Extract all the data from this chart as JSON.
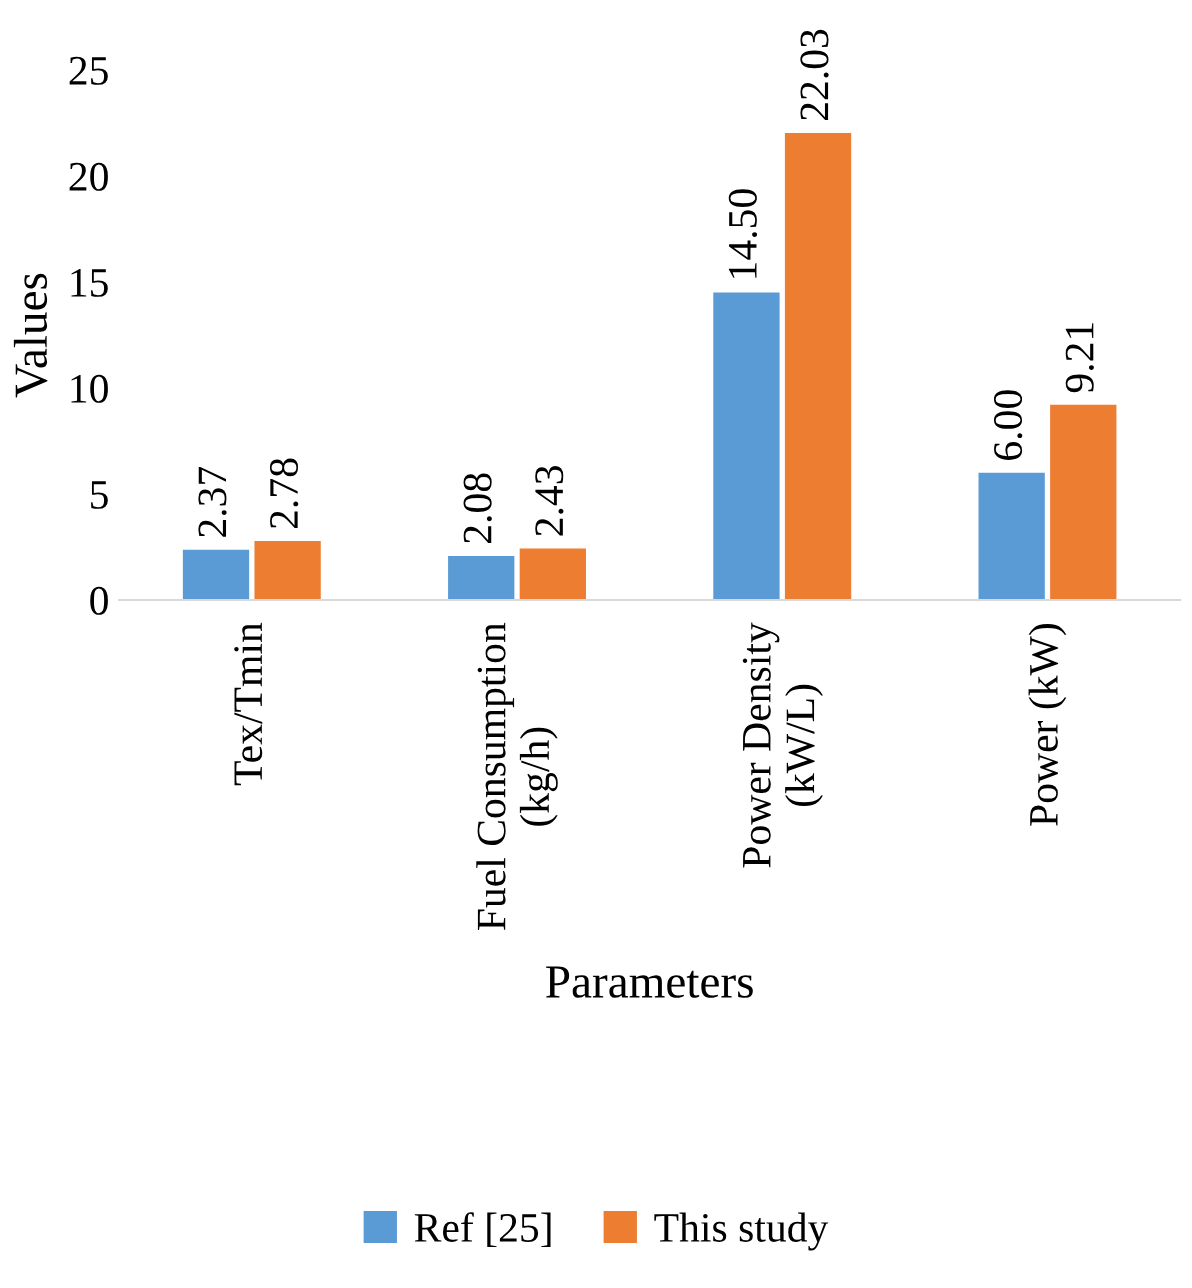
{
  "chart_data": {
    "type": "bar",
    "xlabel": "Parameters",
    "ylabel": "Values",
    "categories": [
      "Tex/Tmin",
      "Fuel Consumption\n(kg/h)",
      "Power Density\n(kW/L)",
      "Power (kW)"
    ],
    "series": [
      {
        "name": "Ref [25]",
        "color": "#5b9bd5",
        "values": [
          2.37,
          2.08,
          14.5,
          6.0
        ],
        "value_labels": [
          "2.37",
          "2.08",
          "14.50",
          "6.00"
        ]
      },
      {
        "name": "This study",
        "color": "#ed7d31",
        "values": [
          2.78,
          2.43,
          22.03,
          9.21
        ],
        "value_labels": [
          "2.78",
          "2.43",
          "22.03",
          "9.21"
        ]
      }
    ],
    "ylim": [
      0,
      25
    ],
    "yticks": [
      0,
      5,
      10,
      15,
      20,
      25
    ],
    "grid": false,
    "legend": "bottom"
  }
}
